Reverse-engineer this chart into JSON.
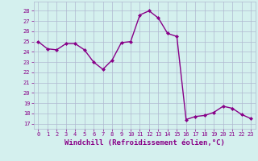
{
  "x": [
    0,
    1,
    2,
    3,
    4,
    5,
    6,
    7,
    8,
    9,
    10,
    11,
    12,
    13,
    14,
    15,
    16,
    17,
    18,
    19,
    20,
    21,
    22,
    23
  ],
  "y": [
    25.0,
    24.3,
    24.2,
    24.8,
    24.8,
    24.2,
    23.0,
    22.3,
    23.2,
    24.9,
    25.0,
    27.6,
    28.0,
    27.3,
    25.8,
    25.5,
    17.4,
    17.7,
    17.8,
    18.1,
    18.7,
    18.5,
    17.9,
    17.5
  ],
  "line_color": "#880088",
  "marker": "D",
  "markersize": 2,
  "linewidth": 1.0,
  "xlabel": "Windchill (Refroidissement éolien,°C)",
  "xlabel_fontsize": 6.5,
  "ylabel_ticks": [
    17,
    18,
    19,
    20,
    21,
    22,
    23,
    24,
    25,
    26,
    27,
    28
  ],
  "ylim": [
    16.5,
    28.9
  ],
  "xlim": [
    -0.5,
    23.5
  ],
  "xticks": [
    0,
    1,
    2,
    3,
    4,
    5,
    6,
    7,
    8,
    9,
    10,
    11,
    12,
    13,
    14,
    15,
    16,
    17,
    18,
    19,
    20,
    21,
    22,
    23
  ],
  "bg_color": "#d4f0ee",
  "grid_color": "#b0b8d0",
  "tick_color": "#880088",
  "label_color": "#880088",
  "tick_fontsize": 5.0,
  "font_family": "monospace"
}
